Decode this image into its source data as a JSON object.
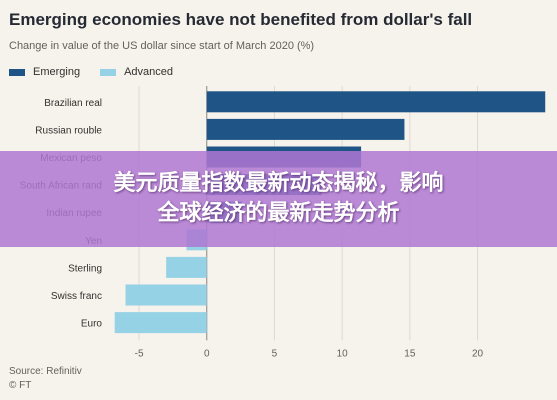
{
  "chart_data": {
    "type": "bar",
    "orientation": "horizontal",
    "title": "Emerging economies have not benefited from dollar's fall",
    "subtitle": "Change in value of the US dollar since start of March 2020 (%)",
    "legend": [
      {
        "name": "Emerging",
        "color": "#1f5486"
      },
      {
        "name": "Advanced",
        "color": "#96d2e5"
      }
    ],
    "categories": [
      "Brazilian real",
      "Russian rouble",
      "Mexican peso",
      "South African rand",
      "Indian rupee",
      "Yen",
      "Sterling",
      "Swiss franc",
      "Euro"
    ],
    "values": [
      25.0,
      14.6,
      11.4,
      8.5,
      2.6,
      -1.5,
      -3.0,
      -6.0,
      -6.8
    ],
    "groups": [
      "Emerging",
      "Emerging",
      "Emerging",
      "Emerging",
      "Emerging",
      "Advanced",
      "Advanced",
      "Advanced",
      "Advanced"
    ],
    "xticks": [
      -5,
      0,
      5,
      10,
      15,
      20
    ],
    "xlim": [
      -7,
      25.5
    ],
    "source": "Source: Refinitiv",
    "credit": "© FT"
  },
  "banner": {
    "line1": "美元质量指数最新动态揭秘，影响",
    "line2": "全球经济的最新走势分析"
  }
}
